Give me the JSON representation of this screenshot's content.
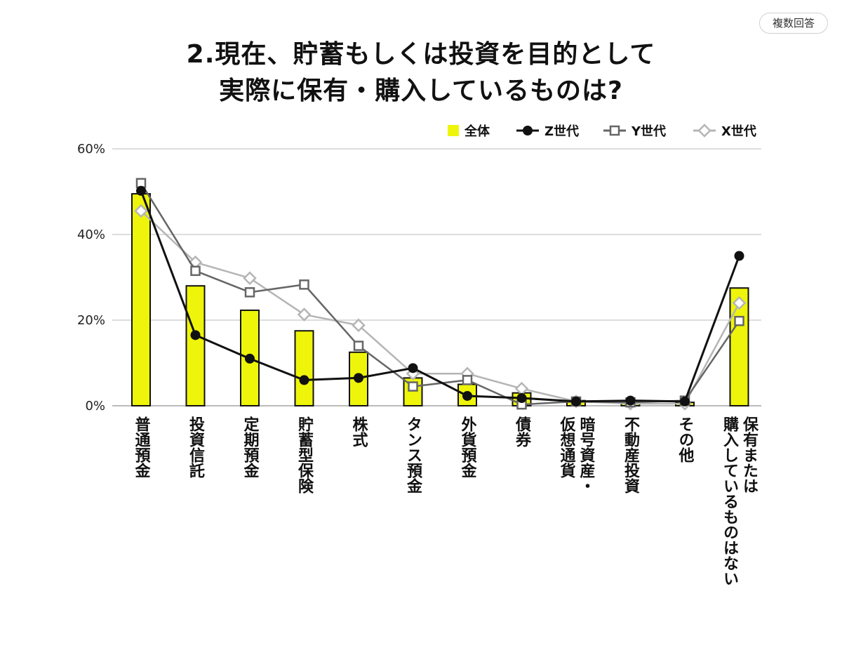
{
  "badge": "複数回答",
  "title": {
    "line1": "2.現在、貯蓄もしくは投資を目的として",
    "line2": "実際に保有・購入しているものは?"
  },
  "colors": {
    "bar": "#eef50a",
    "bar_stroke": "#111111",
    "z": "#111111",
    "y": "#666666",
    "x": "#b5b5b5",
    "grid": "#dddddd",
    "axis": "#bbbbbb"
  },
  "chart_data": {
    "type": "bar+line",
    "title": "2.現在、貯蓄もしくは投資を目的として 実際に保有・購入しているものは?",
    "categories": [
      "普通預金",
      "投資信託",
      "定期預金",
      "貯蓄型保険",
      "株式",
      "タンス預金",
      "外貨預金",
      "債券",
      "暗号資産・仮想通貨",
      "不動産投資",
      "その他",
      "保有または購入しているものはない"
    ],
    "ylim": [
      0,
      60
    ],
    "yticks": [
      0,
      20,
      40,
      60
    ],
    "ytick_labels": [
      "0%",
      "20%",
      "40%",
      "60%"
    ],
    "grid": true,
    "legend_position": "top-right",
    "series": [
      {
        "name": "全体",
        "kind": "bar",
        "marker": "square",
        "values": [
          49.5,
          28.0,
          22.3,
          17.5,
          12.5,
          6.5,
          5.0,
          3.0,
          1.2,
          1.0,
          0.8,
          27.5
        ]
      },
      {
        "name": "Z世代",
        "kind": "line",
        "marker": "circle",
        "values": [
          50.2,
          16.5,
          11.0,
          6.0,
          6.5,
          8.8,
          2.3,
          1.8,
          1.0,
          1.2,
          1.0,
          35.0
        ]
      },
      {
        "name": "Y世代",
        "kind": "line",
        "marker": "open-square",
        "values": [
          52.0,
          31.5,
          26.5,
          28.3,
          14.0,
          4.5,
          6.0,
          0.3,
          1.0,
          0.8,
          1.2,
          19.8
        ]
      },
      {
        "name": "X世代",
        "kind": "line",
        "marker": "open-diamond",
        "values": [
          45.5,
          33.5,
          29.8,
          21.3,
          18.8,
          7.5,
          7.5,
          4.0,
          1.0,
          0.5,
          0.5,
          24.0
        ]
      }
    ]
  }
}
